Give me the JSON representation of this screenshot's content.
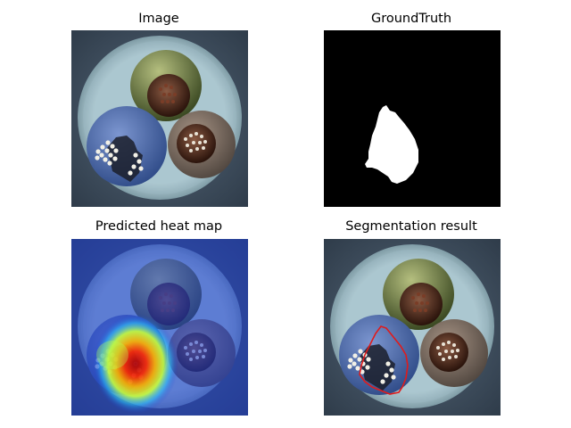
{
  "panels": {
    "image": {
      "title": "Image"
    },
    "ground_truth": {
      "title": "GroundTruth"
    },
    "heatmap": {
      "title": "Predicted heat map"
    },
    "segmentation": {
      "title": "Segmentation result"
    }
  },
  "colors": {
    "background_dark": "#3b4a5a",
    "sheath": "#a9c3cc",
    "cable_blue": "#5875b3",
    "cable_green": "#6f7f45",
    "cable_brown": "#6e6058",
    "copper": "#4a2518",
    "mask_white": "#ffffff",
    "mask_black": "#000000",
    "contour_red": "#e01b1b"
  }
}
